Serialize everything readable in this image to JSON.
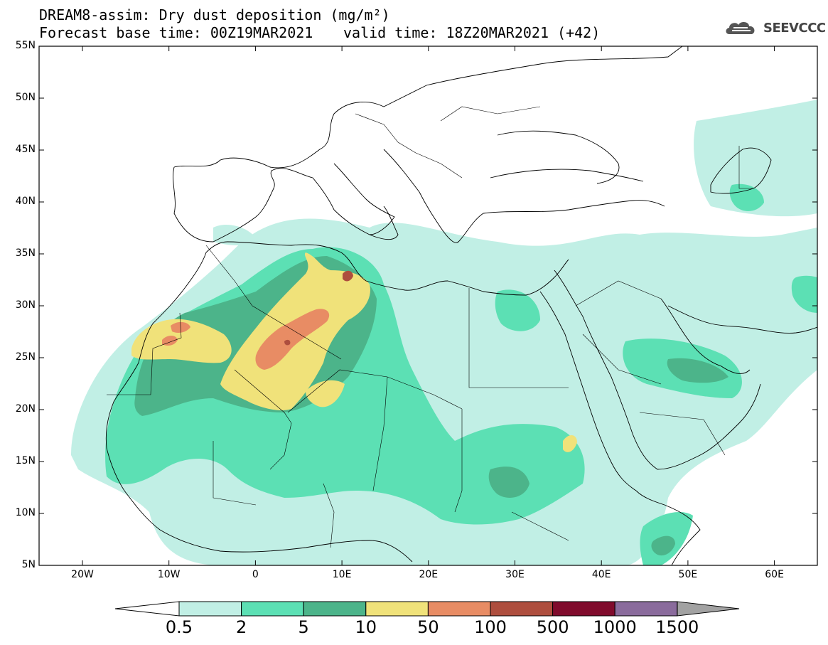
{
  "title_line1": "DREAM8-assim: Dry dust deposition (mg/m²)",
  "title_line2": "Forecast base time: 00Z19MAR2021",
  "valid_time": "valid time: 18Z20MAR2021 (+42)",
  "logo_text": "SEEVCCC",
  "lat_labels": [
    "55N",
    "50N",
    "45N",
    "40N",
    "35N",
    "30N",
    "25N",
    "20N",
    "15N",
    "10N",
    "5N"
  ],
  "lon_labels": [
    "20W",
    "10W",
    "0",
    "10E",
    "20E",
    "30E",
    "40E",
    "50E",
    "60E"
  ],
  "colorbar": {
    "labels": [
      "0.5",
      "2",
      "5",
      "10",
      "50",
      "100",
      "500",
      "1000",
      "1500"
    ],
    "colors": [
      "#c1efe5",
      "#5ce0b4",
      "#4cb48a",
      "#f0e27a",
      "#e88c64",
      "#ae4e3e",
      "#800b2c",
      "#8a6b9c",
      "#a2a2a2"
    ]
  },
  "chart_data": {
    "type": "heatmap",
    "title": "DREAM8-assim: Dry dust deposition (mg/m²)",
    "units": "mg/m²",
    "levels": [
      0.5,
      2,
      5,
      10,
      50,
      100,
      500,
      1000,
      1500
    ],
    "lon_range": [
      -25,
      65
    ],
    "lat_range": [
      5,
      55
    ],
    "maxima_regions": [
      {
        "region": "Central Algerian Sahara",
        "max_class": "50-100"
      },
      {
        "region": "Southern Morocco / Western Sahara",
        "max_class": "50-100"
      },
      {
        "region": "Eastern Algeria / Tunisia border",
        "max_class": "100-500"
      },
      {
        "region": "Eritrea / Red Sea coast",
        "max_class": "10-50"
      }
    ]
  }
}
